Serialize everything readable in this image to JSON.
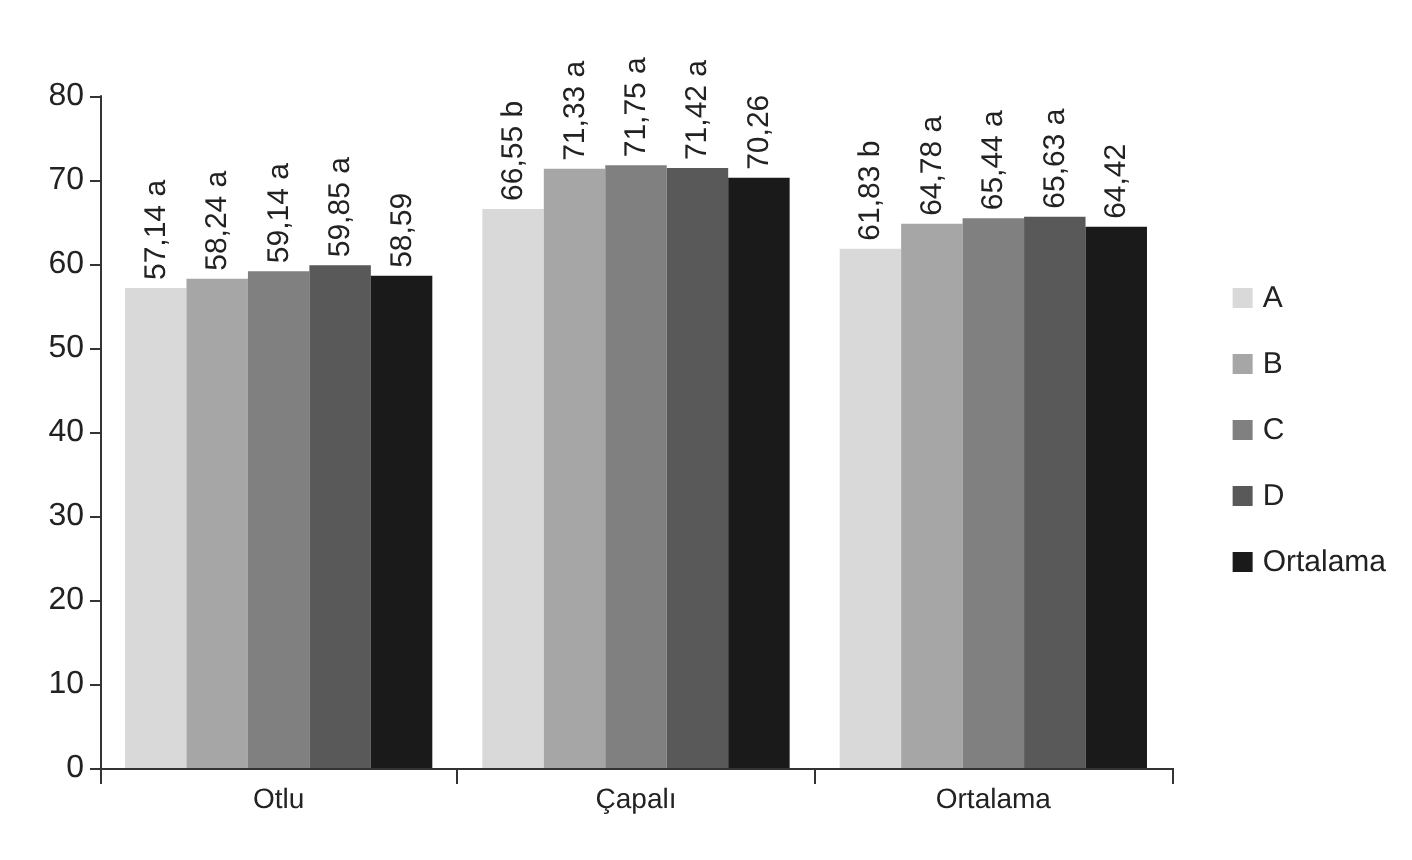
{
  "chart_data": {
    "type": "bar",
    "categories": [
      "Otlu",
      "Çapalı",
      "Ortalama"
    ],
    "series": [
      {
        "name": "A",
        "color": "#d9d9d9",
        "values": [
          57.14,
          66.55,
          61.83
        ],
        "value_labels": [
          "57,14 a",
          "66,55 b",
          "61,83 b"
        ]
      },
      {
        "name": "B",
        "color": "#a6a6a6",
        "values": [
          58.24,
          71.33,
          64.78
        ],
        "value_labels": [
          "58,24 a",
          "71,33 a",
          "64,78 a"
        ]
      },
      {
        "name": "C",
        "color": "#808080",
        "values": [
          59.14,
          71.75,
          65.44
        ],
        "value_labels": [
          "59,14 a",
          "71,75 a",
          "65,44 a"
        ]
      },
      {
        "name": "D",
        "color": "#595959",
        "values": [
          59.85,
          71.42,
          65.63
        ],
        "value_labels": [
          "59,85 a",
          "71,42 a",
          "65,63 a"
        ]
      },
      {
        "name": "Ortalama",
        "color": "#1a1a1a",
        "values": [
          58.59,
          70.26,
          64.42
        ],
        "value_labels": [
          "58,59",
          "70,26",
          "64,42"
        ]
      }
    ],
    "ylim": [
      0,
      80
    ],
    "yticks": [
      0,
      10,
      20,
      30,
      40,
      50,
      60,
      70,
      80
    ],
    "grid": false,
    "legend": "right"
  }
}
